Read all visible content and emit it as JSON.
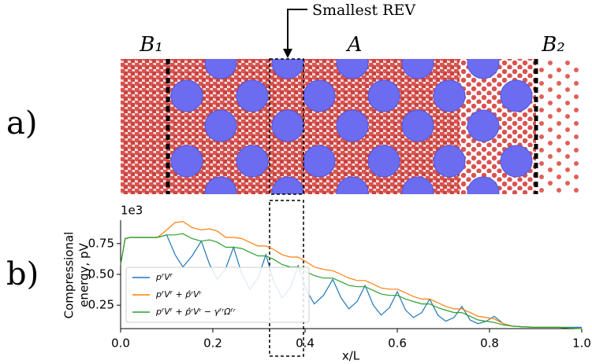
{
  "chart_data": {
    "type": "line",
    "panel_labels": [
      "a)",
      "b)"
    ],
    "annotations": {
      "rev": "Smallest REV",
      "b1": "B₁",
      "a": "A",
      "b2": "B₂"
    },
    "offset_text": "1e3",
    "x_label": "x/L",
    "y_label": [
      "Compressional",
      "energy, pV"
    ],
    "xlim": [
      0,
      1
    ],
    "ylim": [
      0.06,
      0.94
    ],
    "xticks": [
      {
        "value": 0,
        "label": "0.0"
      },
      0.2,
      0.4,
      0.6,
      0.8,
      {
        "value": 1,
        "label": "1.0"
      }
    ],
    "yticks": [
      0.25,
      {
        "value": 0.5,
        "label": "0.50"
      },
      0.75
    ],
    "legend_position": "lower left",
    "x": [
      0,
      0.01,
      0.02,
      0.05,
      0.08,
      0.1,
      0.118,
      0.135,
      0.155,
      0.175,
      0.193,
      0.21,
      0.228,
      0.245,
      0.263,
      0.28,
      0.298,
      0.315,
      0.333,
      0.35,
      0.368,
      0.385,
      0.403,
      0.42,
      0.44,
      0.46,
      0.478,
      0.495,
      0.513,
      0.53,
      0.548,
      0.565,
      0.583,
      0.6,
      0.618,
      0.635,
      0.653,
      0.67,
      0.688,
      0.705,
      0.723,
      0.74,
      0.758,
      0.775,
      0.793,
      0.81,
      0.83,
      0.85,
      0.87,
      0.9,
      0.95,
      1.0
    ],
    "series": [
      {
        "name": "pᶠVᶠ",
        "color": "#1f77b4",
        "values": [
          0.58,
          0.79,
          0.8,
          0.8,
          0.8,
          0.82,
          0.66,
          0.56,
          0.65,
          0.77,
          0.58,
          0.46,
          0.55,
          0.72,
          0.5,
          0.38,
          0.47,
          0.66,
          0.43,
          0.31,
          0.39,
          0.57,
          0.37,
          0.26,
          0.33,
          0.46,
          0.31,
          0.22,
          0.28,
          0.41,
          0.25,
          0.17,
          0.23,
          0.36,
          0.21,
          0.15,
          0.19,
          0.3,
          0.17,
          0.12,
          0.15,
          0.24,
          0.13,
          0.1,
          0.12,
          0.16,
          0.1,
          0.08,
          0.075,
          0.07,
          0.07,
          0.07
        ]
      },
      {
        "name": "pᶠVᶠ + p̂ʳVʳ",
        "color": "#ff7f0e",
        "values": [
          0.58,
          0.79,
          0.8,
          0.8,
          0.8,
          0.86,
          0.92,
          0.93,
          0.88,
          0.86,
          0.87,
          0.85,
          0.8,
          0.8,
          0.79,
          0.76,
          0.73,
          0.73,
          0.7,
          0.66,
          0.64,
          0.64,
          0.6,
          0.56,
          0.54,
          0.53,
          0.5,
          0.47,
          0.45,
          0.45,
          0.42,
          0.39,
          0.38,
          0.38,
          0.35,
          0.32,
          0.3,
          0.3,
          0.27,
          0.24,
          0.22,
          0.22,
          0.19,
          0.16,
          0.15,
          0.14,
          0.1,
          0.08,
          0.075,
          0.07,
          0.07,
          0.06
        ]
      },
      {
        "name": "pᶠVᶠ + p̂ʳVʳ − γᶠʳΩᶠʳ",
        "color": "#2ca02c",
        "values": [
          0.58,
          0.79,
          0.8,
          0.8,
          0.8,
          0.82,
          0.82,
          0.83,
          0.79,
          0.77,
          0.78,
          0.76,
          0.72,
          0.72,
          0.71,
          0.68,
          0.65,
          0.65,
          0.62,
          0.58,
          0.56,
          0.56,
          0.52,
          0.49,
          0.47,
          0.47,
          0.44,
          0.41,
          0.4,
          0.4,
          0.37,
          0.34,
          0.33,
          0.33,
          0.3,
          0.28,
          0.26,
          0.26,
          0.23,
          0.21,
          0.19,
          0.19,
          0.16,
          0.13,
          0.12,
          0.11,
          0.09,
          0.08,
          0.075,
          0.07,
          0.07,
          0.06
        ]
      }
    ]
  }
}
